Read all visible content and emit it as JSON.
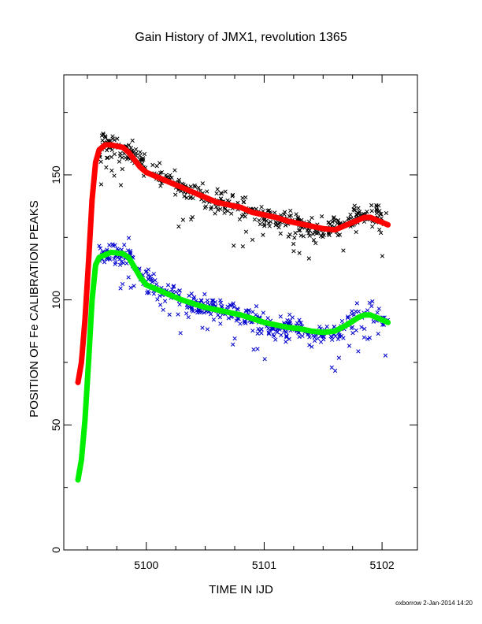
{
  "chart_data": {
    "type": "scatter",
    "title": "Gain History of JMX1, revolution 1365",
    "xlabel": "TIME IN IJD",
    "ylabel": "POSITION OF Fe CALIBRATION PEAKS",
    "xlim": [
      5099.3,
      5102.3
    ],
    "ylim": [
      0,
      190
    ],
    "x_ticks": [
      5100,
      5101,
      5102
    ],
    "y_ticks": [
      0,
      50,
      100,
      150
    ],
    "grid": false,
    "legend": "none",
    "footer": "oxborrow  2-Jan-2014 14:20",
    "colors": {
      "black_points": "#000000",
      "blue_points": "#0000cc",
      "red_curve": "#ff0000",
      "green_curve": "#00ee00"
    },
    "series": [
      {
        "marker": "x",
        "color": "#000000",
        "sampled": true,
        "points": [
          [
            5099.6,
            158
          ],
          [
            5099.65,
            163
          ],
          [
            5099.7,
            162
          ],
          [
            5099.75,
            160
          ],
          [
            5099.8,
            158
          ],
          [
            5099.85,
            160
          ],
          [
            5099.9,
            157
          ],
          [
            5099.95,
            155
          ],
          [
            5100.0,
            153
          ],
          [
            5100.1,
            150
          ],
          [
            5100.2,
            147
          ],
          [
            5100.3,
            145
          ],
          [
            5100.4,
            143
          ],
          [
            5100.5,
            141
          ],
          [
            5100.6,
            139
          ],
          [
            5100.7,
            138
          ],
          [
            5100.8,
            137
          ],
          [
            5100.9,
            135
          ],
          [
            5101.0,
            133
          ],
          [
            5101.1,
            132
          ],
          [
            5101.2,
            131
          ],
          [
            5101.3,
            130
          ],
          [
            5101.4,
            129
          ],
          [
            5101.5,
            128
          ],
          [
            5101.6,
            129
          ],
          [
            5101.7,
            131
          ],
          [
            5101.8,
            133
          ],
          [
            5101.9,
            134
          ],
          [
            5102.0,
            132
          ],
          [
            5102.05,
            130
          ]
        ]
      },
      {
        "marker": "x",
        "color": "#0000cc",
        "sampled": true,
        "points": [
          [
            5099.6,
            117
          ],
          [
            5099.65,
            119
          ],
          [
            5099.7,
            120
          ],
          [
            5099.75,
            118
          ],
          [
            5099.8,
            117
          ],
          [
            5099.85,
            119
          ],
          [
            5099.9,
            114
          ],
          [
            5099.95,
            110
          ],
          [
            5100.0,
            107
          ],
          [
            5100.1,
            104
          ],
          [
            5100.2,
            102
          ],
          [
            5100.3,
            100
          ],
          [
            5100.4,
            98
          ],
          [
            5100.5,
            97
          ],
          [
            5100.6,
            96
          ],
          [
            5100.7,
            95
          ],
          [
            5100.8,
            94
          ],
          [
            5100.9,
            92
          ],
          [
            5101.0,
            90
          ],
          [
            5101.1,
            89
          ],
          [
            5101.2,
            89
          ],
          [
            5101.3,
            88
          ],
          [
            5101.4,
            87
          ],
          [
            5101.5,
            86
          ],
          [
            5101.6,
            87
          ],
          [
            5101.7,
            90
          ],
          [
            5101.8,
            93
          ],
          [
            5101.9,
            95
          ],
          [
            5102.0,
            93
          ],
          [
            5102.05,
            91
          ]
        ]
      },
      {
        "marker": "line+plus",
        "color": "#ff0000",
        "points": [
          [
            5099.42,
            67
          ],
          [
            5099.45,
            75
          ],
          [
            5099.48,
            92
          ],
          [
            5099.51,
            115
          ],
          [
            5099.54,
            140
          ],
          [
            5099.57,
            155
          ],
          [
            5099.6,
            160
          ],
          [
            5099.65,
            162
          ],
          [
            5099.7,
            162
          ],
          [
            5099.8,
            161
          ],
          [
            5099.85,
            159
          ],
          [
            5099.9,
            156
          ],
          [
            5099.95,
            153
          ],
          [
            5100.0,
            151
          ],
          [
            5100.1,
            149
          ],
          [
            5100.2,
            147
          ],
          [
            5100.3,
            145
          ],
          [
            5100.4,
            143
          ],
          [
            5100.5,
            141
          ],
          [
            5100.6,
            139
          ],
          [
            5100.7,
            138
          ],
          [
            5100.8,
            137
          ],
          [
            5100.9,
            135
          ],
          [
            5101.0,
            134
          ],
          [
            5101.1,
            133
          ],
          [
            5101.2,
            131.5
          ],
          [
            5101.3,
            130.5
          ],
          [
            5101.4,
            129.5
          ],
          [
            5101.5,
            128.5
          ],
          [
            5101.6,
            128
          ],
          [
            5101.7,
            130
          ],
          [
            5101.8,
            132
          ],
          [
            5101.85,
            133
          ],
          [
            5101.9,
            133
          ],
          [
            5101.95,
            132
          ],
          [
            5102.0,
            131
          ],
          [
            5102.05,
            130
          ]
        ]
      },
      {
        "marker": "line+plus",
        "color": "#00ee00",
        "points": [
          [
            5099.42,
            28
          ],
          [
            5099.45,
            36
          ],
          [
            5099.48,
            52
          ],
          [
            5099.51,
            75
          ],
          [
            5099.54,
            100
          ],
          [
            5099.57,
            114
          ],
          [
            5099.6,
            117
          ],
          [
            5099.65,
            118
          ],
          [
            5099.7,
            119
          ],
          [
            5099.8,
            118.5
          ],
          [
            5099.85,
            117
          ],
          [
            5099.9,
            113
          ],
          [
            5099.95,
            109
          ],
          [
            5100.0,
            106
          ],
          [
            5100.1,
            104
          ],
          [
            5100.2,
            102
          ],
          [
            5100.3,
            100
          ],
          [
            5100.4,
            98.5
          ],
          [
            5100.5,
            97
          ],
          [
            5100.6,
            96
          ],
          [
            5100.7,
            95
          ],
          [
            5100.8,
            94
          ],
          [
            5100.9,
            92.5
          ],
          [
            5101.0,
            91
          ],
          [
            5101.1,
            90
          ],
          [
            5101.2,
            89
          ],
          [
            5101.3,
            88.5
          ],
          [
            5101.4,
            87.5
          ],
          [
            5101.5,
            87
          ],
          [
            5101.6,
            87.5
          ],
          [
            5101.7,
            90
          ],
          [
            5101.8,
            93
          ],
          [
            5101.85,
            94
          ],
          [
            5101.9,
            94
          ],
          [
            5101.95,
            93
          ],
          [
            5102.0,
            92
          ],
          [
            5102.05,
            91
          ]
        ]
      }
    ]
  }
}
